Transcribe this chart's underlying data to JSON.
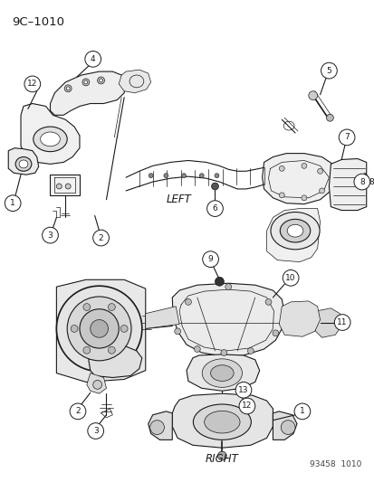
{
  "title_code": "9C–1010",
  "footer": "93458  1010",
  "label_left": "LEFT",
  "label_right": "RIGHT",
  "bg_color": "#ffffff",
  "line_color": "#1a1a1a",
  "fig_width": 4.14,
  "fig_height": 5.33,
  "dpi": 100
}
